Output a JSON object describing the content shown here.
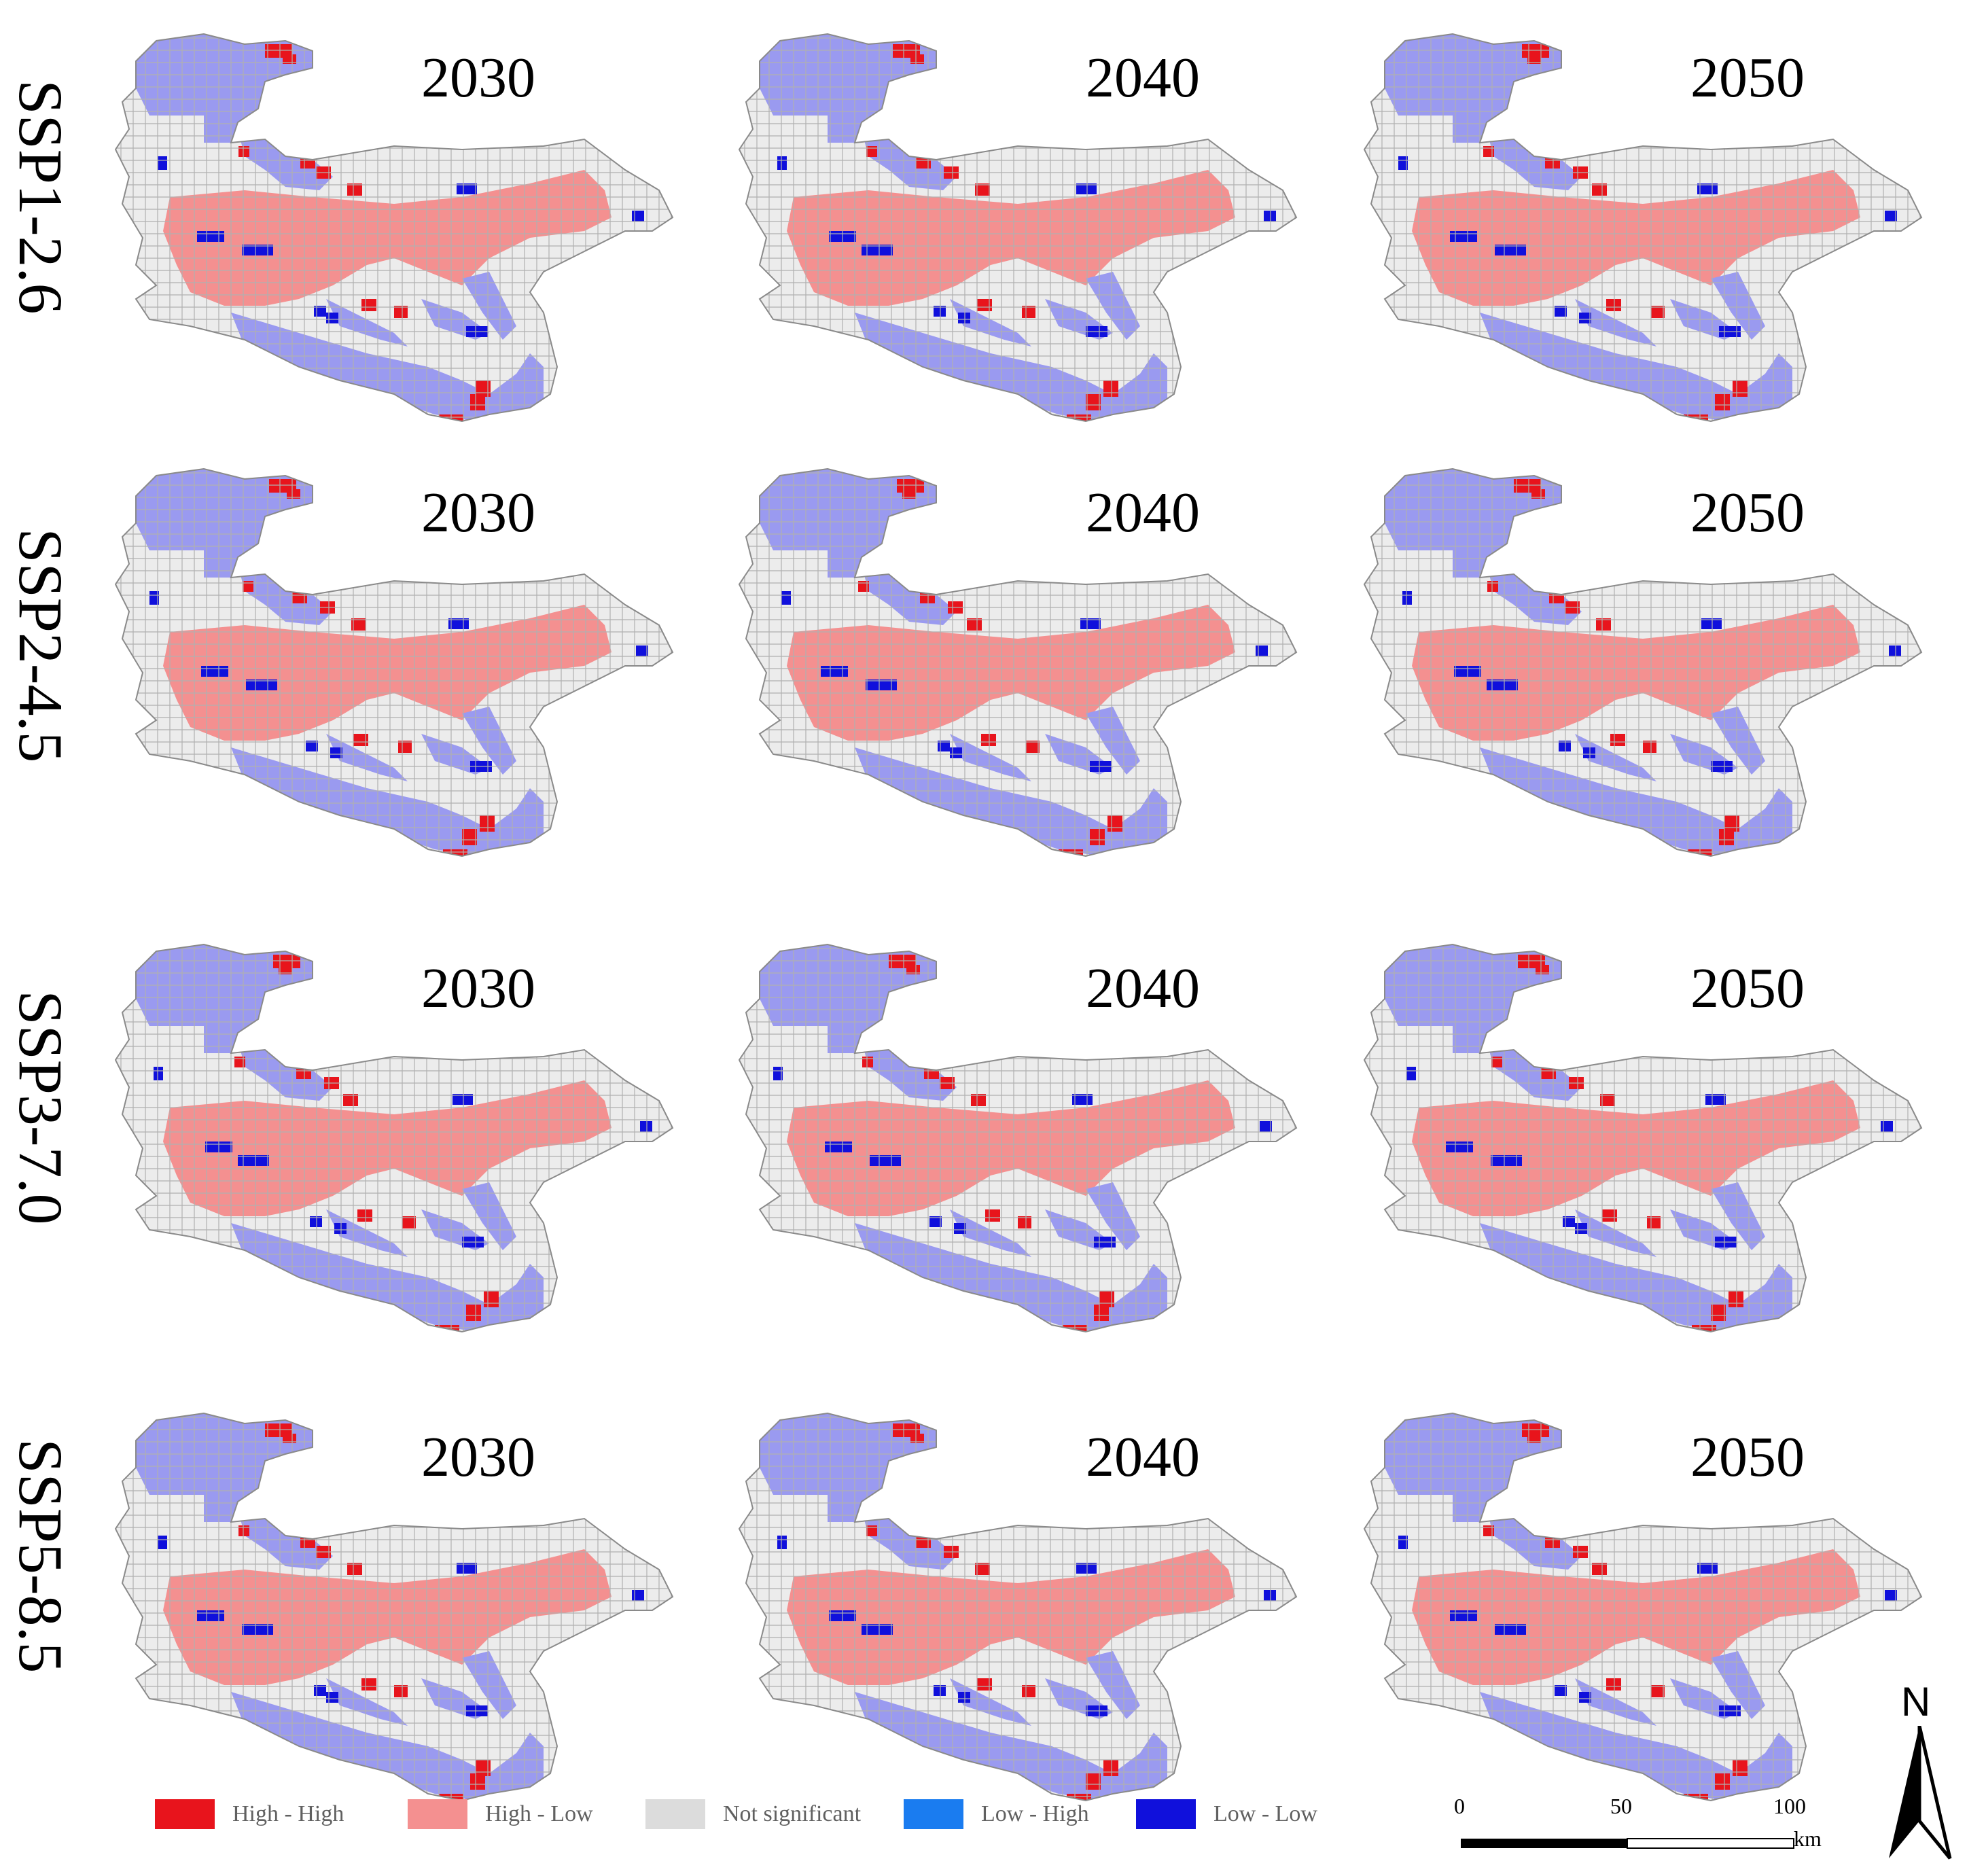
{
  "scenarios": [
    "SSP1-2.6",
    "SSP2-4.5",
    "SSP3-7.0",
    "SSP5-8.5"
  ],
  "years": [
    "2030",
    "2040",
    "2050"
  ],
  "legend": [
    {
      "label": "High - High",
      "color": "#e8141c"
    },
    {
      "label": "High - Low",
      "color": "#f49090"
    },
    {
      "label": "Not significant",
      "color": "#dcdcdc"
    },
    {
      "label": "Low - High",
      "color": "#1a7cf0"
    },
    {
      "label": "Low - Low",
      "color": "#1010dc"
    }
  ],
  "region_colors": {
    "low_band": "#9a9af0",
    "high_low": "#f49090",
    "not_significant": "#ececec",
    "high_high": "#e8141c",
    "low_low": "#1010dc"
  },
  "scale": {
    "ticks": [
      "0",
      "50",
      "100"
    ],
    "unit": "km"
  },
  "north": {
    "label": "N"
  },
  "icons": {
    "north_arrow": "north-arrow-icon",
    "scale_bar": "scale-bar-icon"
  }
}
